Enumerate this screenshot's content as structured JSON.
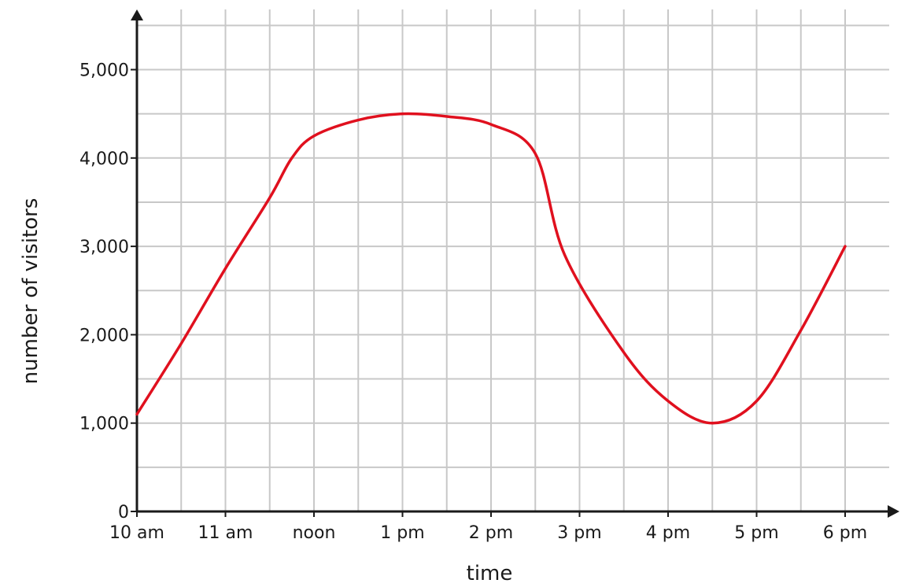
{
  "chart_data": {
    "type": "line",
    "title": "",
    "xlabel": "time",
    "ylabel": "number of visitors",
    "x_categories": [
      "10 am",
      "11 am",
      "noon",
      "1 pm",
      "2 pm",
      "3 pm",
      "4 pm",
      "5 pm",
      "6 pm"
    ],
    "x_range": [
      "10 am",
      "6 pm"
    ],
    "ylim": [
      0,
      5500
    ],
    "y_ticks": [
      0,
      1000,
      2000,
      3000,
      4000,
      5000
    ],
    "y_tick_labels": [
      "0",
      "1,000",
      "2,000",
      "3,000",
      "4,000",
      "5,000"
    ],
    "grid": true,
    "minor_grid": "half-hour and 500-visitor gridlines",
    "legend": "none",
    "series": [
      {
        "color": "#e0101e",
        "points": [
          {
            "time": "10:00",
            "visitors": 1100
          },
          {
            "time": "10:30",
            "visitors": 1900
          },
          {
            "time": "11:00",
            "visitors": 2750
          },
          {
            "time": "11:30",
            "visitors": 3550
          },
          {
            "time": "11:45",
            "visitors": 4000
          },
          {
            "time": "12:00",
            "visitors": 4250
          },
          {
            "time": "12:30",
            "visitors": 4430
          },
          {
            "time": "13:00",
            "visitors": 4500
          },
          {
            "time": "13:30",
            "visitors": 4470
          },
          {
            "time": "14:00",
            "visitors": 4380
          },
          {
            "time": "14:30",
            "visitors": 4050
          },
          {
            "time": "14:50",
            "visitors": 2900
          },
          {
            "time": "15:30",
            "visitors": 1800
          },
          {
            "time": "16:00",
            "visitors": 1250
          },
          {
            "time": "16:30",
            "visitors": 1000
          },
          {
            "time": "17:00",
            "visitors": 1250
          },
          {
            "time": "17:30",
            "visitors": 2050
          },
          {
            "time": "18:00",
            "visitors": 3000
          }
        ]
      }
    ]
  },
  "colors": {
    "line": "#e0101e",
    "grid": "#c8c8c8",
    "axis": "#1a1a1a"
  }
}
